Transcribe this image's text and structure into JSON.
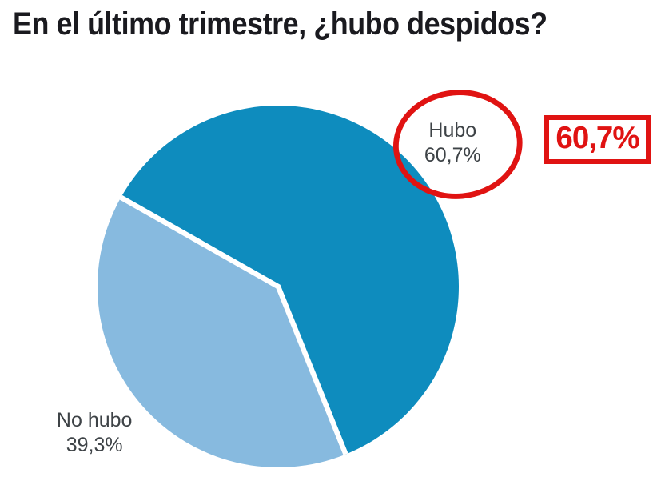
{
  "title": "En el último trimestre, ¿hubo despidos?",
  "chart_data": {
    "type": "pie",
    "title": "En el último trimestre, ¿hubo despidos?",
    "slices": [
      {
        "label": "Hubo",
        "value": 60.7,
        "display": "60,7%",
        "color": "#0e8cbe"
      },
      {
        "label": "No hubo",
        "value": 39.3,
        "display": "39,3%",
        "color": "#87badf"
      }
    ],
    "start_angle_deg": 299.5,
    "separator_color": "#ffffff",
    "legend": "none",
    "labels_outside": true
  },
  "labels": {
    "hubo_line1": "Hubo",
    "hubo_line2": "60,7%",
    "nohubo_line1": "No hubo",
    "nohubo_line2": "39,3%"
  },
  "callout": {
    "value": "60,7%"
  },
  "colors": {
    "background": "#ffffff",
    "title_text": "#1a1a1f",
    "label_text": "#3e4347",
    "annotation_red": "#e01312",
    "slice_dark": "#0e8cbe",
    "slice_light": "#87badf"
  }
}
